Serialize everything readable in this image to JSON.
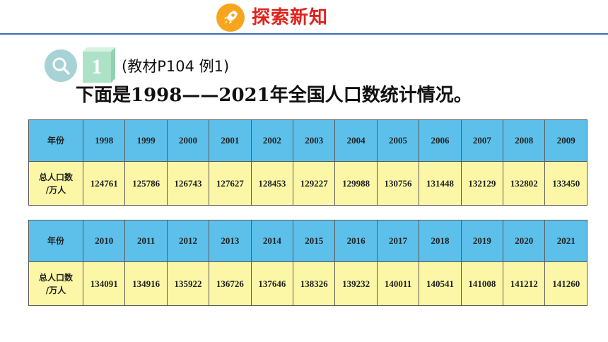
{
  "header": {
    "title": "探索新知",
    "icon": "rocket-icon"
  },
  "example": {
    "icon": "magnifier-icon",
    "number": "1",
    "reference": "(教材P104  例1)",
    "intro": "下面是1998——2021年全国人口数统计情况。"
  },
  "table1": {
    "year_header": "年份",
    "pop_header_line1": "总人口数",
    "pop_header_line2": "/万人",
    "years": [
      "1998",
      "1999",
      "2000",
      "2001",
      "2002",
      "2003",
      "2004",
      "2005",
      "2006",
      "2007",
      "2008",
      "2009"
    ],
    "values": [
      "124761",
      "125786",
      "126743",
      "127627",
      "128453",
      "129227",
      "129988",
      "130756",
      "131448",
      "132129",
      "132802",
      "133450"
    ]
  },
  "table2": {
    "year_header": "年份",
    "pop_header_line1": "总人口数",
    "pop_header_line2": "/万人",
    "years": [
      "2010",
      "2011",
      "2012",
      "2013",
      "2014",
      "2015",
      "2016",
      "2017",
      "2018",
      "2019",
      "2020",
      "2021"
    ],
    "values": [
      "134091",
      "134916",
      "135922",
      "136726",
      "137646",
      "138326",
      "139232",
      "140011",
      "140541",
      "141008",
      "141212",
      "141260"
    ]
  },
  "colors": {
    "header_line": "#3b6fb6",
    "title_red": "#e0231d",
    "badge_orange": "#f7a51c",
    "year_row_blue": "#5cc0ea",
    "pop_row_yellow": "#fbf7a6"
  }
}
